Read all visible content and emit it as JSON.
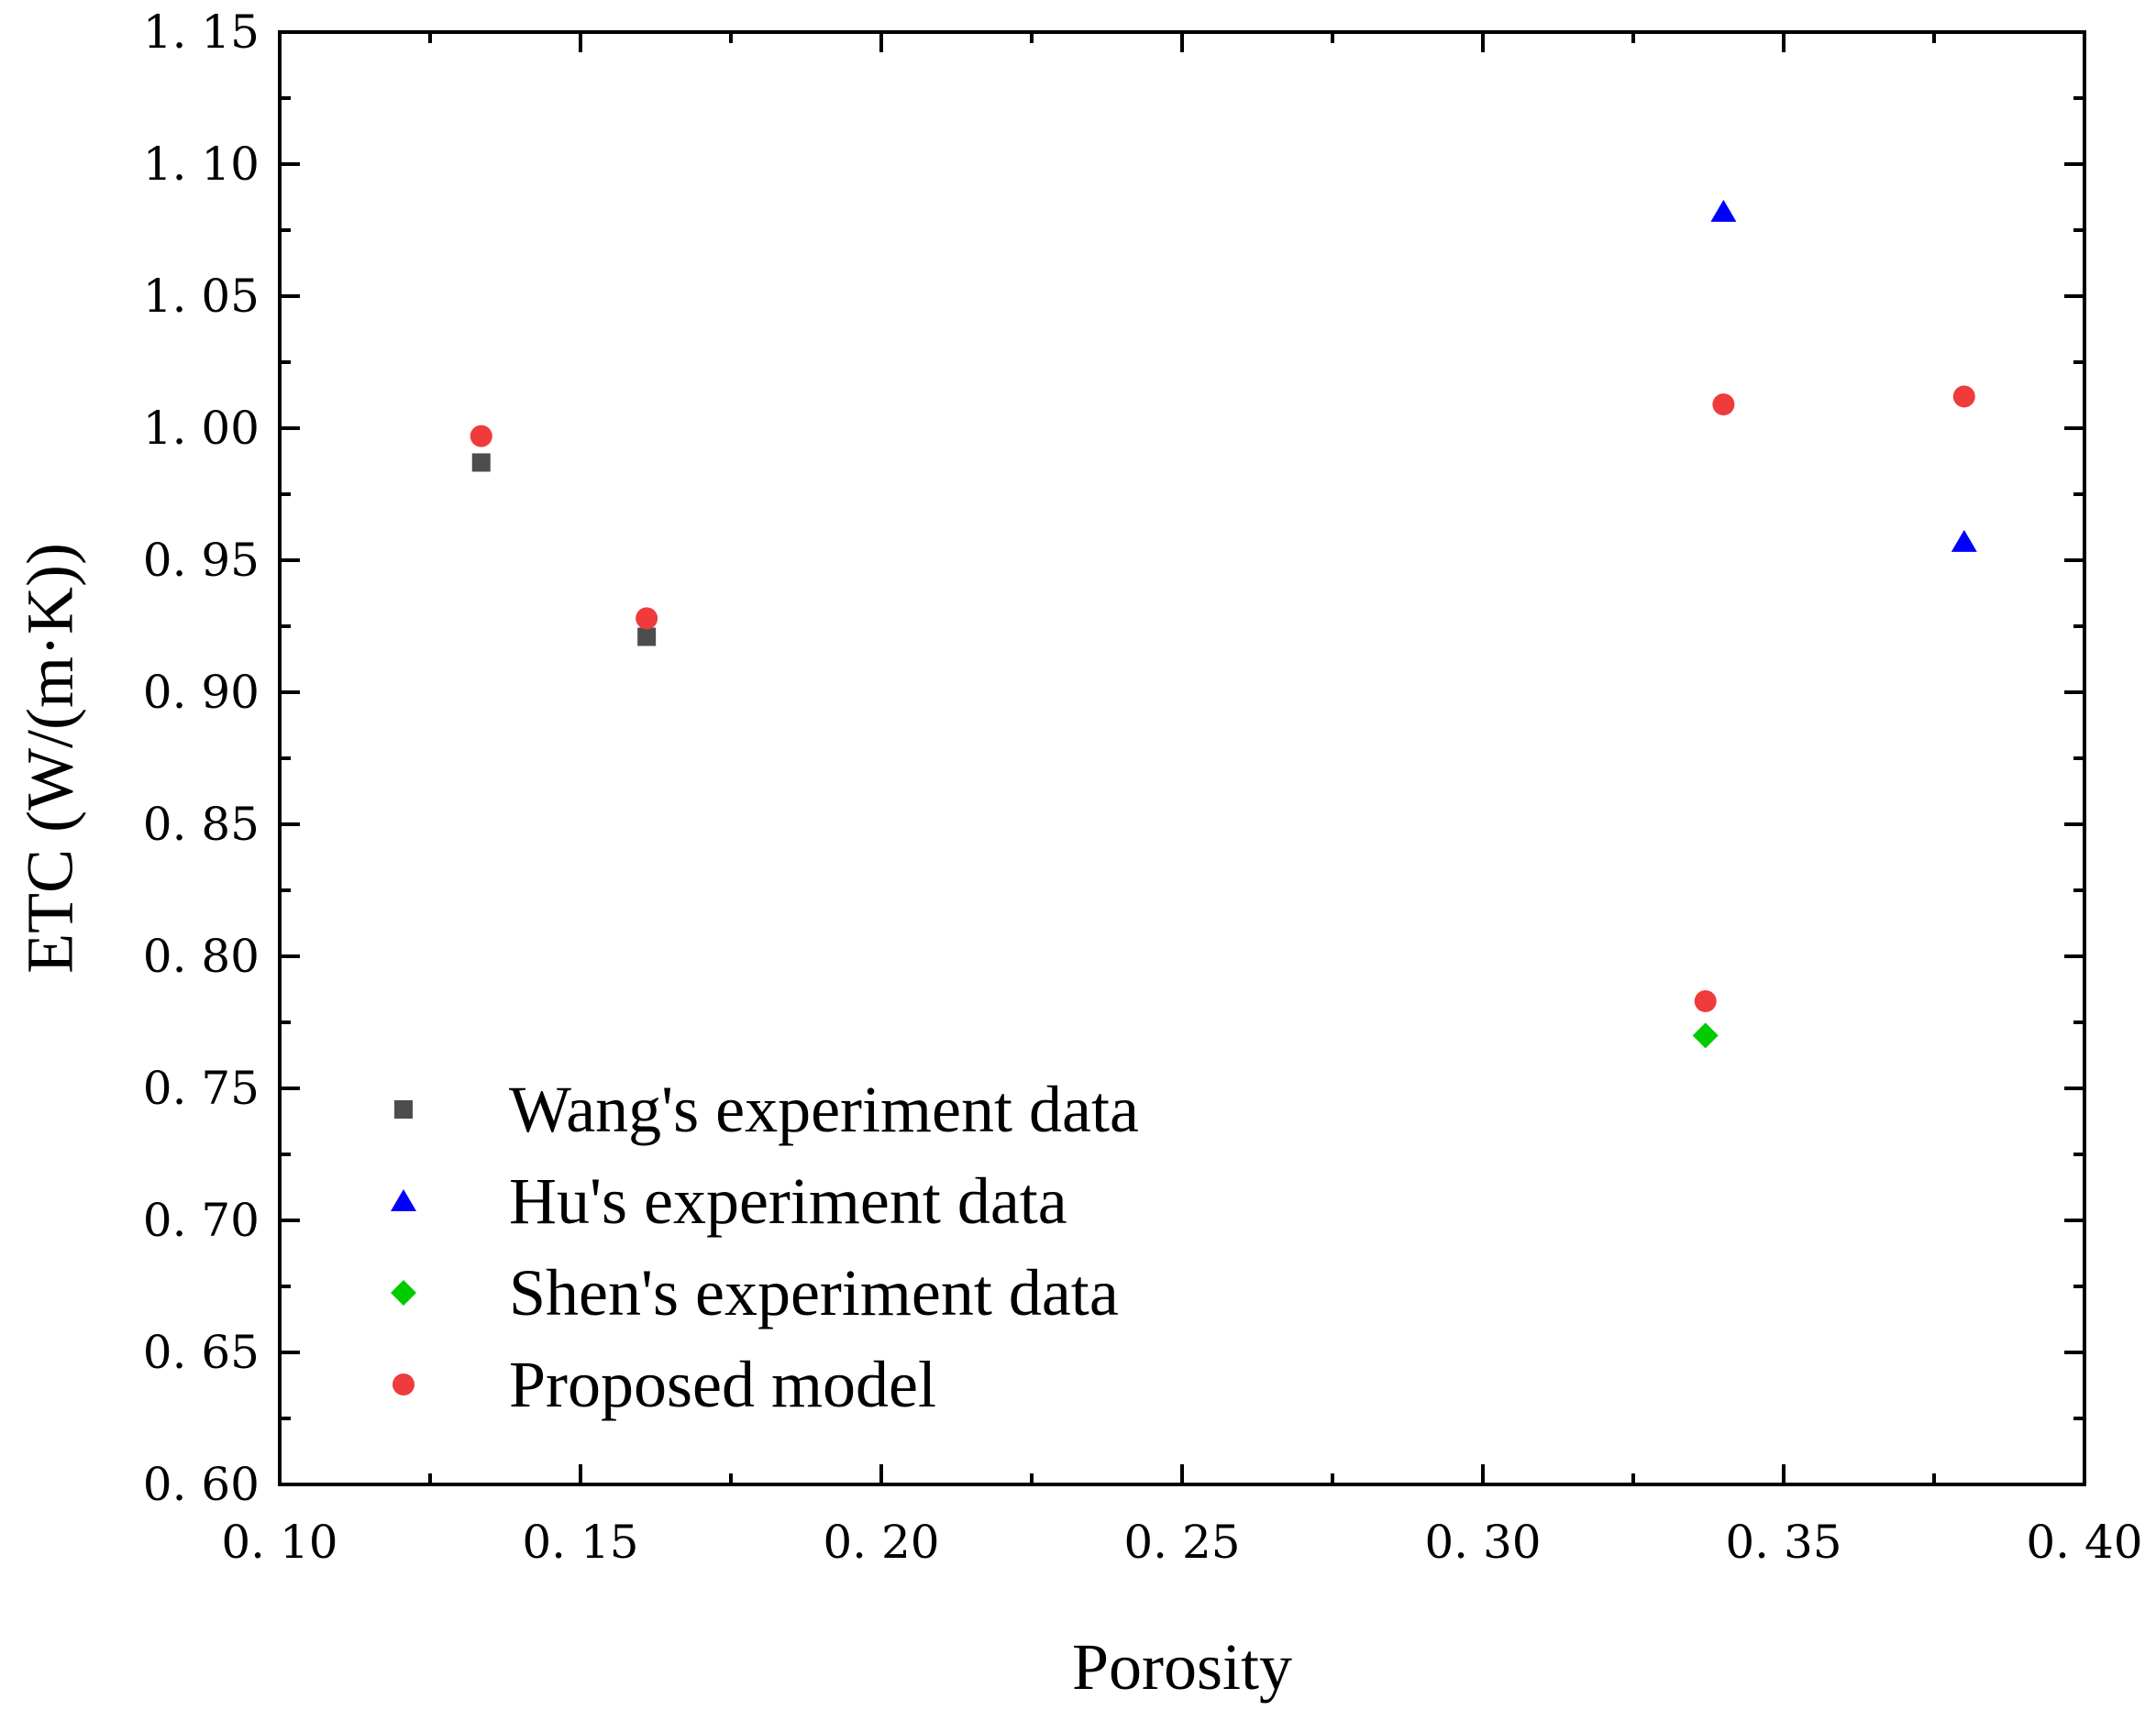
{
  "chart_data": {
    "type": "scatter",
    "title": "",
    "xlabel": "Porosity",
    "ylabel": "ETC (W/(m·K))",
    "xlim": [
      0.1,
      0.4
    ],
    "ylim": [
      0.6,
      1.15
    ],
    "x_ticks": [
      0.1,
      0.15,
      0.2,
      0.25,
      0.3,
      0.35,
      0.4
    ],
    "x_tick_labels": [
      "0. 10",
      "0. 15",
      "0. 20",
      "0. 25",
      "0. 30",
      "0. 35",
      "0. 40"
    ],
    "y_ticks": [
      0.6,
      0.65,
      0.7,
      0.75,
      0.8,
      0.85,
      0.9,
      0.95,
      1.0,
      1.05,
      1.1,
      1.15
    ],
    "y_tick_labels": [
      "0. 60",
      "0. 65",
      "0. 70",
      "0. 75",
      "0. 80",
      "0. 85",
      "0. 90",
      "0. 95",
      "1. 00",
      "1. 05",
      "1. 10",
      "1. 15"
    ],
    "grid": false,
    "legend_position": "bottom-left",
    "series": [
      {
        "name": "Wang's experiment data",
        "marker": "square",
        "color": "#4d4d4d",
        "points": [
          {
            "x": 0.1335,
            "y": 0.987
          },
          {
            "x": 0.161,
            "y": 0.921
          }
        ]
      },
      {
        "name": "Hu's experiment data",
        "marker": "triangle",
        "color": "#0000ff",
        "points": [
          {
            "x": 0.34,
            "y": 1.082
          },
          {
            "x": 0.38,
            "y": 0.957
          }
        ]
      },
      {
        "name": "Shen's experiment data",
        "marker": "diamond",
        "color": "#00cc00",
        "points": [
          {
            "x": 0.337,
            "y": 0.77
          }
        ]
      },
      {
        "name": "Proposed model",
        "marker": "circle",
        "color": "#ef3b3b",
        "points": [
          {
            "x": 0.1335,
            "y": 0.997
          },
          {
            "x": 0.161,
            "y": 0.928
          },
          {
            "x": 0.34,
            "y": 1.009
          },
          {
            "x": 0.38,
            "y": 1.012
          },
          {
            "x": 0.337,
            "y": 0.783
          }
        ]
      }
    ]
  }
}
